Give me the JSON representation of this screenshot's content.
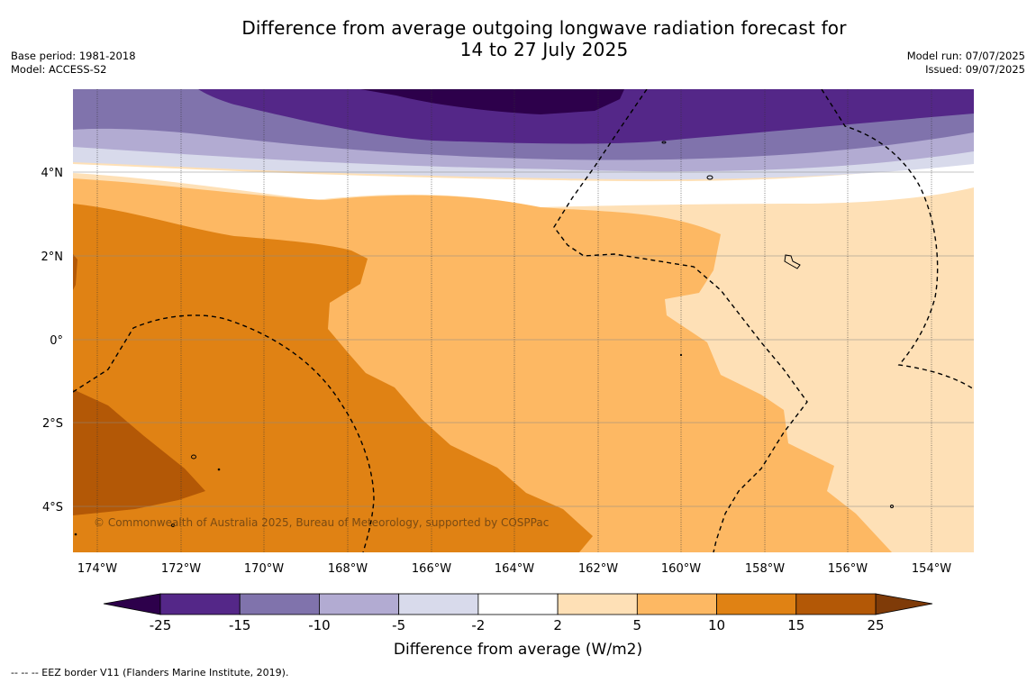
{
  "title": {
    "line1": "Difference from average outgoing longwave radiation forecast for",
    "line2": "14 to 27 July 2025"
  },
  "meta_left": {
    "base_period": "Base period: 1981-2018",
    "model": "Model: ACCESS-S2"
  },
  "meta_right": {
    "model_run": "Model run: 07/07/2025",
    "issued": "Issued: 09/07/2025"
  },
  "map": {
    "lon_labels": [
      "174°W",
      "172°W",
      "170°W",
      "168°W",
      "166°W",
      "164°W",
      "162°W",
      "160°W",
      "158°W",
      "156°W",
      "154°W"
    ],
    "lat_labels": [
      "4°N",
      "2°N",
      "0°",
      "2°S",
      "4°S"
    ],
    "copyright": "© Commonwealth of Australia 2025, Bureau of Meteorology, supported by COSPPac"
  },
  "colorbar": {
    "levels": [
      "-25",
      "-15",
      "-10",
      "-5",
      "-2",
      "2",
      "5",
      "10",
      "15",
      "25"
    ],
    "colors": [
      "#2d004b",
      "#542788",
      "#8073ac",
      "#b2abd2",
      "#d8daeb",
      "#ffffff",
      "#fee0b6",
      "#fdb863",
      "#e08214",
      "#b35806",
      "#7f3b08"
    ],
    "title": "Difference from average (W/m2)"
  },
  "footnote": "--  --  -- EEZ border V11 (Flanders Marine Institute, 2019)."
}
